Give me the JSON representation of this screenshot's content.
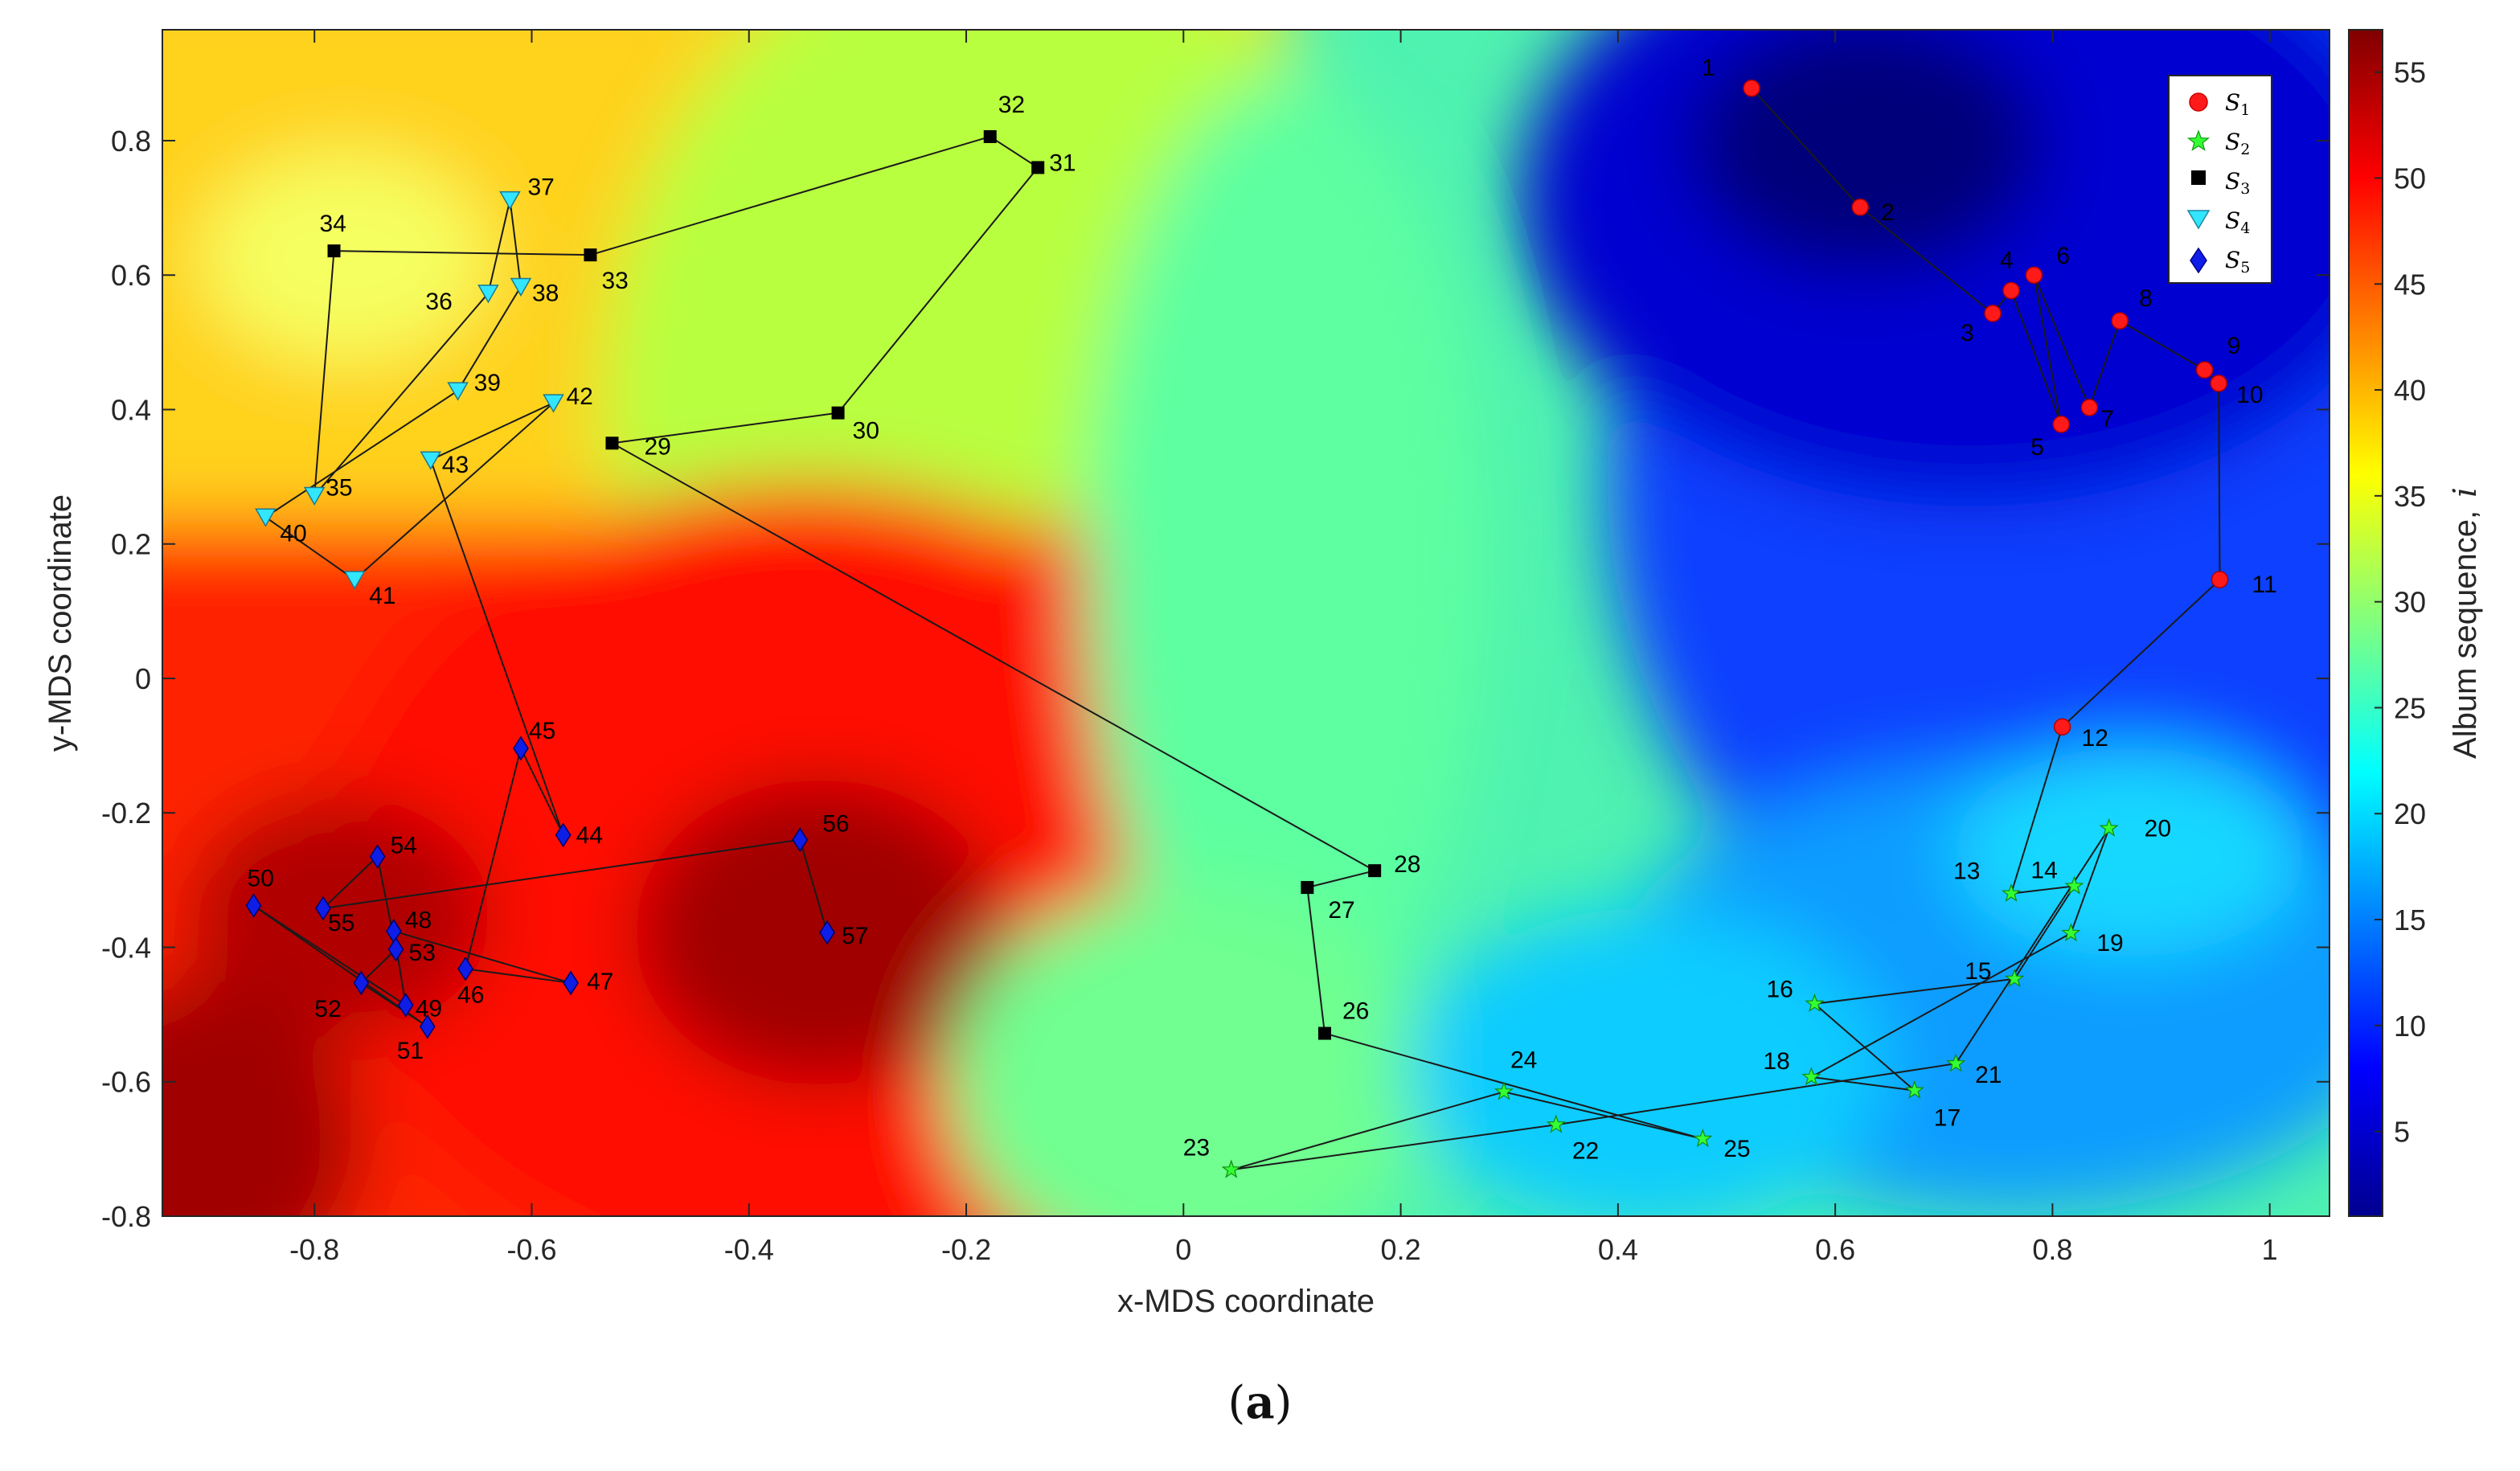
{
  "caption": {
    "open": "(",
    "letter": "a",
    "close": ")"
  },
  "chart_data": {
    "type": "scatter",
    "title": "",
    "xlabel": "x-MDS coordinate",
    "ylabel": "y-MDS coordinate",
    "xlim": [
      -0.94,
      1.055
    ],
    "ylim": [
      -0.8,
      0.965
    ],
    "xticks": [
      -0.8,
      -0.6,
      -0.4,
      -0.2,
      0,
      0.2,
      0.4,
      0.6,
      0.8,
      1
    ],
    "xtick_labels": [
      "-0.8",
      "-0.6",
      "-0.4",
      "-0.2",
      "0",
      "0.2",
      "0.4",
      "0.6",
      "0.8",
      "1"
    ],
    "yticks": [
      0.8,
      0.6,
      0.4,
      0.2,
      0,
      -0.2,
      -0.4,
      -0.6,
      -0.8
    ],
    "ytick_labels": [
      "0.8",
      "0.6",
      "0.4",
      "0.2",
      "0",
      "-0.2",
      "-0.4",
      "-0.6",
      "-0.8"
    ],
    "colorbar": {
      "label": "Album sequence,  i",
      "label_main": "Album sequence,",
      "label_var": "i",
      "range": [
        1,
        57
      ],
      "ticks": [
        5,
        10,
        15,
        20,
        25,
        30,
        35,
        40,
        45,
        50,
        55
      ],
      "tick_labels": [
        "5",
        "10",
        "15",
        "20",
        "25",
        "30",
        "35",
        "40",
        "45",
        "50",
        "55"
      ],
      "colormap": "jet"
    },
    "legend": {
      "position": "top-right",
      "entries": [
        {
          "series": "S1",
          "main": "S",
          "sub": "1"
        },
        {
          "series": "S2",
          "main": "S",
          "sub": "2"
        },
        {
          "series": "S3",
          "main": "S",
          "sub": "3"
        },
        {
          "series": "S4",
          "main": "S",
          "sub": "4"
        },
        {
          "series": "S5",
          "main": "S",
          "sub": "5"
        }
      ]
    },
    "series": [
      {
        "name": "S1",
        "marker": "circle",
        "color": "#ff1a1a",
        "points": [
          {
            "label": "1",
            "x": 0.523,
            "y": 0.878
          },
          {
            "label": "2",
            "x": 0.623,
            "y": 0.701
          },
          {
            "label": "3",
            "x": 0.745,
            "y": 0.543
          },
          {
            "label": "4",
            "x": 0.762,
            "y": 0.577
          },
          {
            "label": "5",
            "x": 0.808,
            "y": 0.378
          },
          {
            "label": "6",
            "x": 0.783,
            "y": 0.6
          },
          {
            "label": "7",
            "x": 0.834,
            "y": 0.403
          },
          {
            "label": "8",
            "x": 0.862,
            "y": 0.532
          },
          {
            "label": "9",
            "x": 0.94,
            "y": 0.459
          },
          {
            "label": "10",
            "x": 0.953,
            "y": 0.439
          },
          {
            "label": "11",
            "x": 0.954,
            "y": 0.147
          },
          {
            "label": "12",
            "x": 0.809,
            "y": -0.072
          }
        ]
      },
      {
        "name": "S2",
        "marker": "star",
        "color": "#33ff33",
        "points": [
          {
            "label": "13",
            "x": 0.762,
            "y": -0.32
          },
          {
            "label": "14",
            "x": 0.82,
            "y": -0.309
          },
          {
            "label": "15",
            "x": 0.765,
            "y": -0.447
          },
          {
            "label": "16",
            "x": 0.581,
            "y": -0.484
          },
          {
            "label": "17",
            "x": 0.673,
            "y": -0.613
          },
          {
            "label": "18",
            "x": 0.578,
            "y": -0.593
          },
          {
            "label": "19",
            "x": 0.817,
            "y": -0.379
          },
          {
            "label": "20",
            "x": 0.852,
            "y": -0.223
          },
          {
            "label": "21",
            "x": 0.711,
            "y": -0.573
          },
          {
            "label": "22",
            "x": 0.343,
            "y": -0.664
          },
          {
            "label": "23",
            "x": 0.044,
            "y": -0.731
          },
          {
            "label": "24",
            "x": 0.295,
            "y": -0.615
          },
          {
            "label": "25",
            "x": 0.478,
            "y": -0.685
          }
        ]
      },
      {
        "name": "S3",
        "marker": "square",
        "color": "#000000",
        "points": [
          {
            "label": "26",
            "x": 0.13,
            "y": -0.528
          },
          {
            "label": "27",
            "x": 0.114,
            "y": -0.311
          },
          {
            "label": "28",
            "x": 0.176,
            "y": -0.286
          },
          {
            "label": "29",
            "x": -0.526,
            "y": 0.35
          },
          {
            "label": "30",
            "x": -0.318,
            "y": 0.395
          },
          {
            "label": "31",
            "x": -0.134,
            "y": 0.76
          },
          {
            "label": "32",
            "x": -0.178,
            "y": 0.806
          },
          {
            "label": "33",
            "x": -0.546,
            "y": 0.63
          },
          {
            "label": "34",
            "x": -0.782,
            "y": 0.636
          }
        ]
      },
      {
        "name": "S4",
        "marker": "triangle-down",
        "color": "#33e6ff",
        "points": [
          {
            "label": "35",
            "x": -0.8,
            "y": 0.272
          },
          {
            "label": "36",
            "x": -0.64,
            "y": 0.573
          },
          {
            "label": "37",
            "x": -0.62,
            "y": 0.712
          },
          {
            "label": "38",
            "x": -0.61,
            "y": 0.583
          },
          {
            "label": "39",
            "x": -0.668,
            "y": 0.428
          },
          {
            "label": "40",
            "x": -0.845,
            "y": 0.24
          },
          {
            "label": "41",
            "x": -0.763,
            "y": 0.147
          },
          {
            "label": "42",
            "x": -0.58,
            "y": 0.41
          },
          {
            "label": "43",
            "x": -0.693,
            "y": 0.325
          }
        ]
      },
      {
        "name": "S5",
        "marker": "diamond",
        "color": "#0f1ee6",
        "points": [
          {
            "label": "44",
            "x": -0.571,
            "y": -0.233
          },
          {
            "label": "45",
            "x": -0.61,
            "y": -0.104
          },
          {
            "label": "46",
            "x": -0.661,
            "y": -0.432
          },
          {
            "label": "47",
            "x": -0.564,
            "y": -0.453
          },
          {
            "label": "48",
            "x": -0.727,
            "y": -0.376
          },
          {
            "label": "49",
            "x": -0.716,
            "y": -0.486
          },
          {
            "label": "50",
            "x": -0.856,
            "y": -0.338
          },
          {
            "label": "51",
            "x": -0.696,
            "y": -0.518
          },
          {
            "label": "52",
            "x": -0.757,
            "y": -0.453
          },
          {
            "label": "53",
            "x": -0.725,
            "y": -0.403
          },
          {
            "label": "54",
            "x": -0.742,
            "y": -0.265
          },
          {
            "label": "55",
            "x": -0.792,
            "y": -0.342
          },
          {
            "label": "56",
            "x": -0.353,
            "y": -0.24
          },
          {
            "label": "57",
            "x": -0.328,
            "y": -0.378
          }
        ]
      }
    ]
  }
}
